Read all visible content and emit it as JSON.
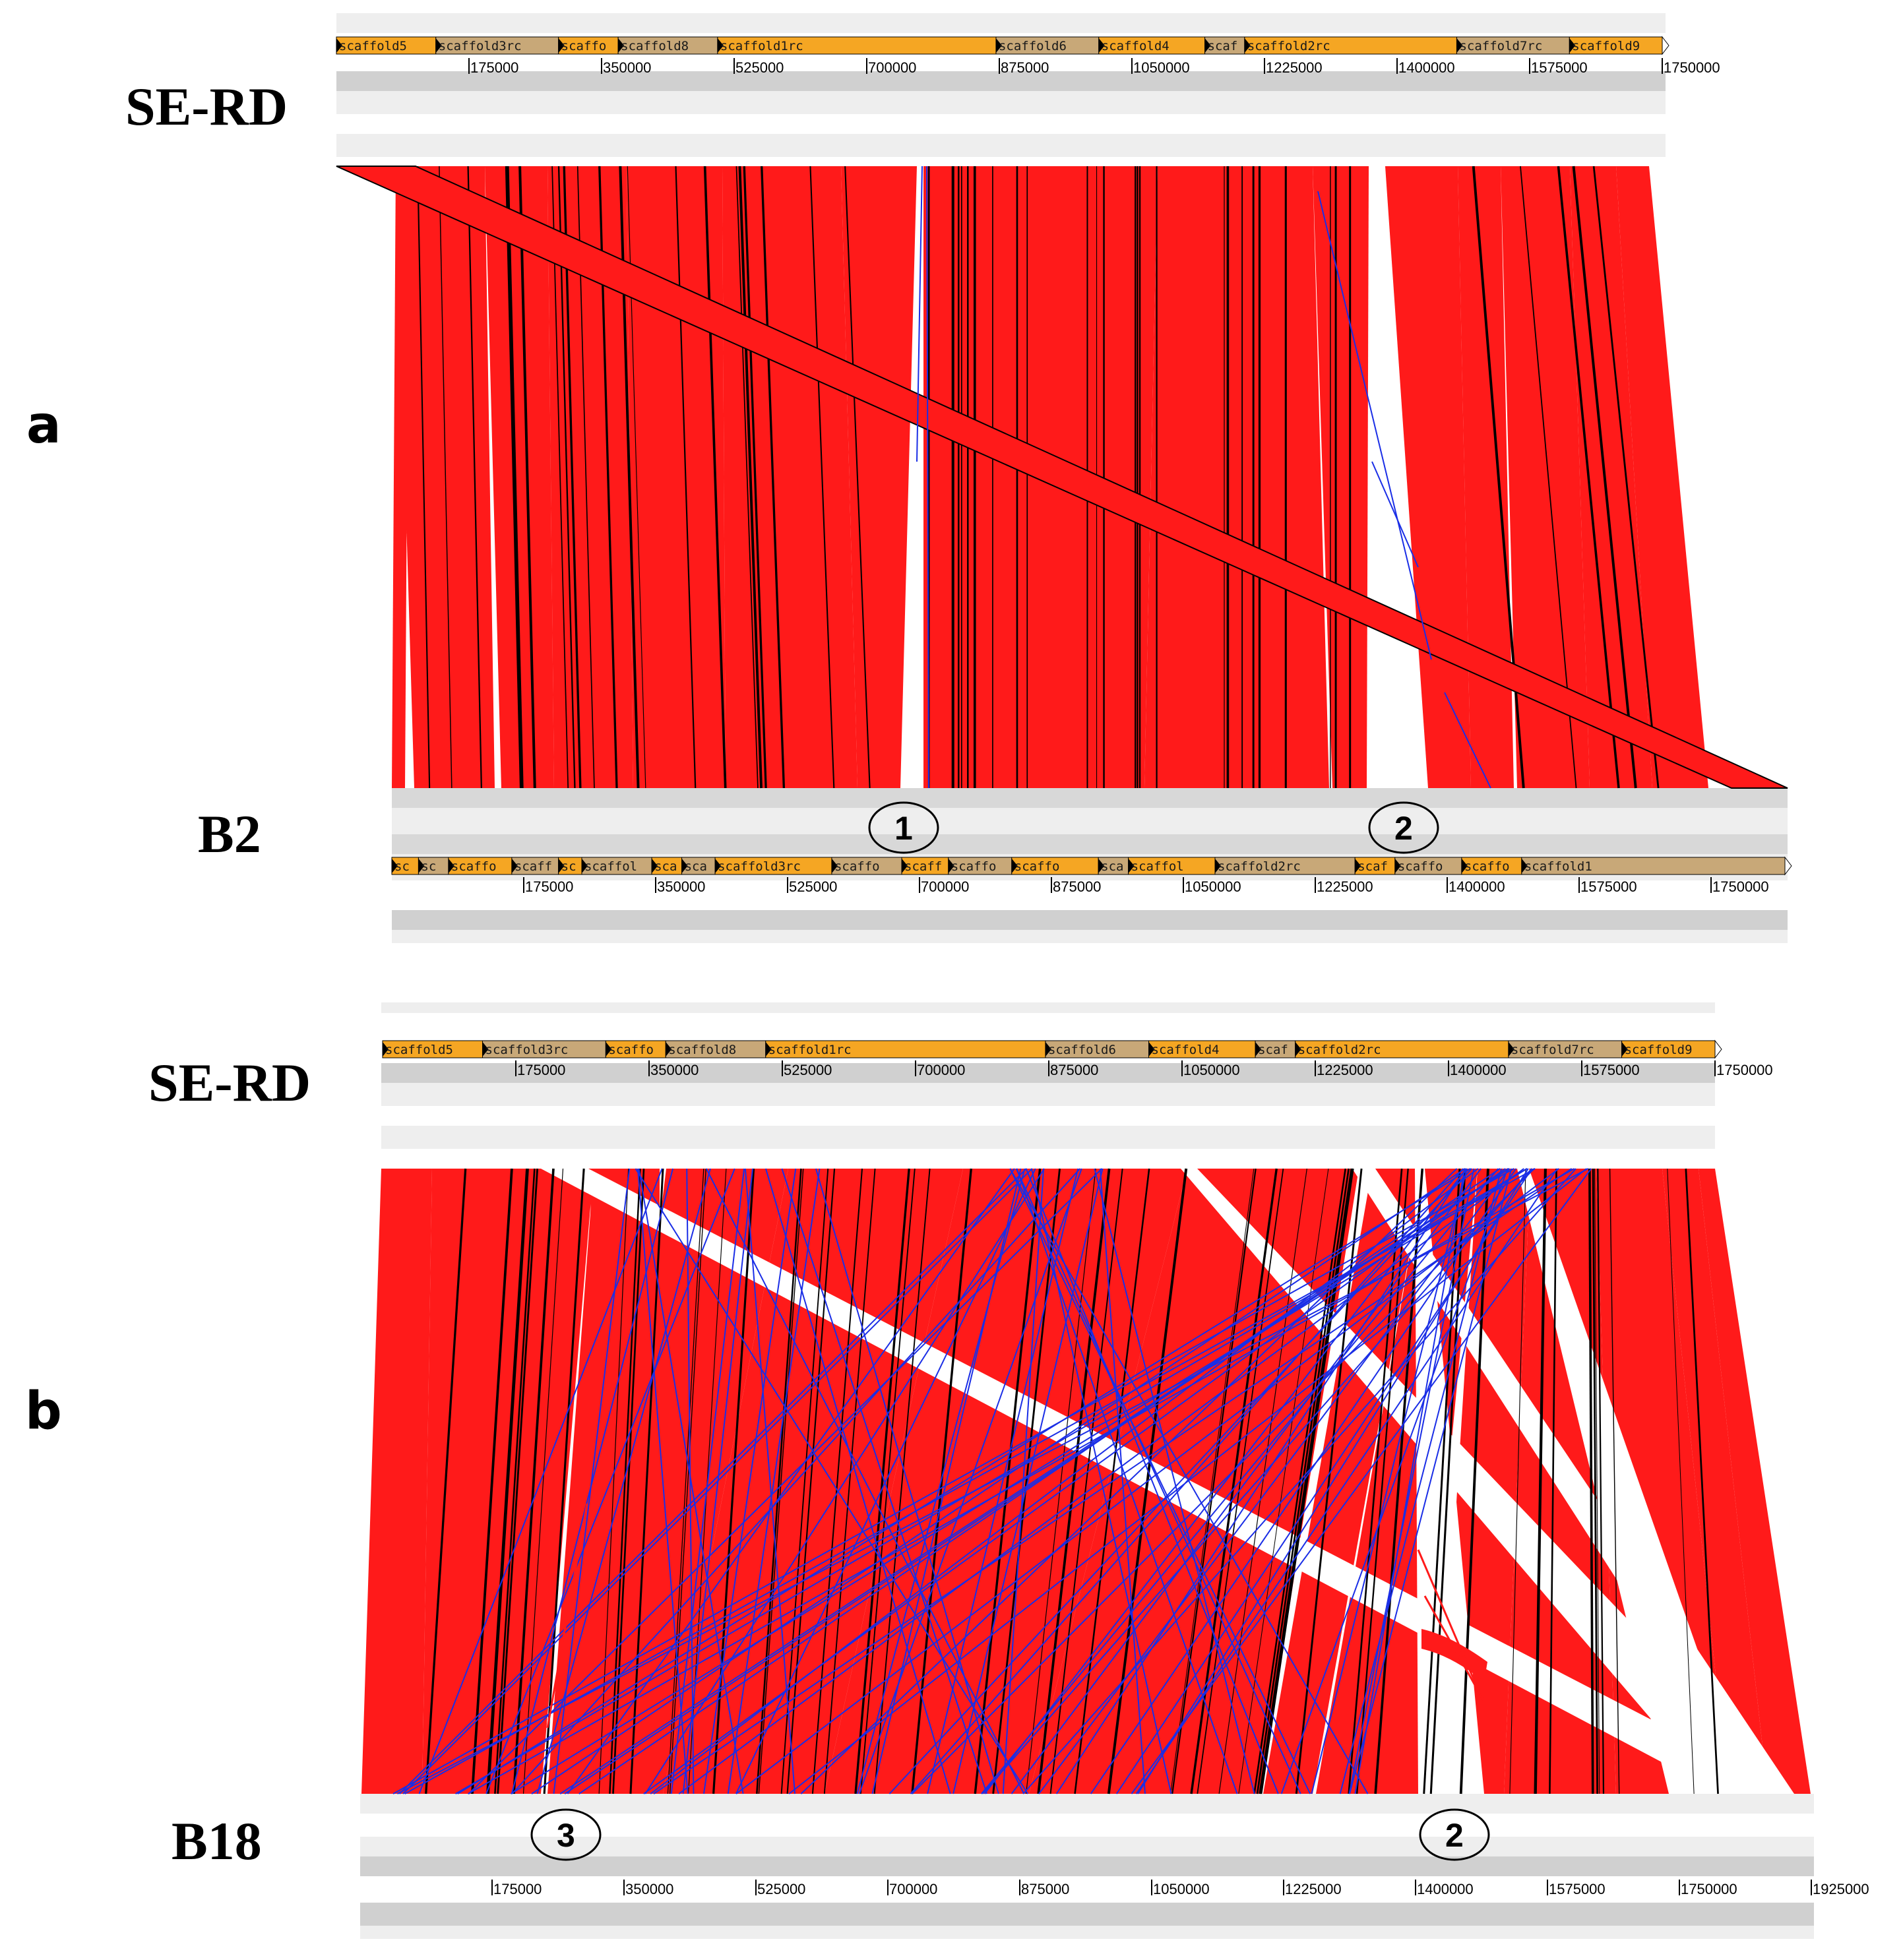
{
  "panels": [
    {
      "letter": "a",
      "top_genome": "SE-RD",
      "bottom_genome": "B2",
      "top_scaffolds": [
        "scaffold5",
        "scaffold3rc",
        "scaffo",
        "scaffold8",
        "scaffold1rc",
        "scaffold6",
        "scaffold4",
        "scaf",
        "scaffold2rc",
        "scaffold7rc",
        "scaffold9"
      ],
      "top_ticks": [
        "175000",
        "350000",
        "525000",
        "700000",
        "875000",
        "1050000",
        "1225000",
        "1400000",
        "1575000",
        "1750000"
      ],
      "bottom_scaffolds": [
        "sc",
        "sc",
        "scaffo",
        "scaff",
        "sc",
        "scaffol",
        "sca",
        "sca",
        "scaffold3rc",
        "scaffo",
        "scaff",
        "scaffo",
        "scaffo",
        "sca",
        "scaffol",
        "scaffold2rc",
        "scaf",
        "scaffo",
        "scaffo",
        "scaffold1"
      ],
      "bottom_ticks": [
        "175000",
        "350000",
        "525000",
        "700000",
        "875000",
        "1050000",
        "1225000",
        "1400000",
        "1575000",
        "1750000"
      ],
      "markers": [
        "1",
        "2"
      ]
    },
    {
      "letter": "b",
      "top_genome": "SE-RD",
      "bottom_genome": "B18",
      "top_scaffolds": [
        "scaffold5",
        "scaffold3rc",
        "scaffo",
        "scaffold8",
        "scaffold1rc",
        "scaffold6",
        "scaffold4",
        "scaf",
        "scaffold2rc",
        "scaffold7rc",
        "scaffold9"
      ],
      "top_ticks": [
        "175000",
        "350000",
        "525000",
        "700000",
        "875000",
        "1050000",
        "1225000",
        "1400000",
        "1575000",
        "1750000"
      ],
      "bottom_ticks": [
        "175000",
        "350000",
        "525000",
        "700000",
        "875000",
        "1050000",
        "1225000",
        "1400000",
        "1575000",
        "1750000",
        "1925000"
      ],
      "markers": [
        "3",
        "2"
      ]
    }
  ],
  "colors": {
    "scaffold_fill": "#f5a623",
    "scaffold_alt_fill": "#c8a878",
    "collinear": "#ff1a1a",
    "inverted": "#1a2ee6",
    "track_gray": "#d0d0d0",
    "track_light": "#eeeeee"
  }
}
